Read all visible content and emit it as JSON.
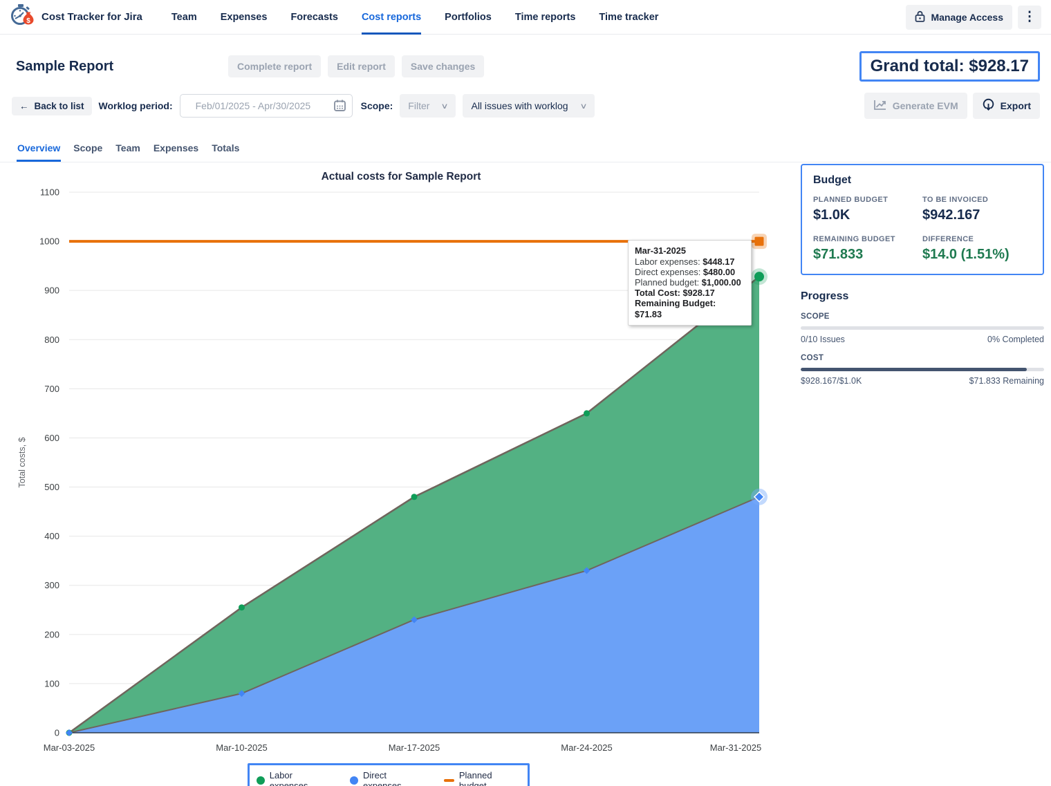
{
  "brand": {
    "name": "Cost Tracker for Jira"
  },
  "nav": {
    "items": [
      {
        "label": "Team"
      },
      {
        "label": "Expenses"
      },
      {
        "label": "Forecasts"
      },
      {
        "label": "Cost reports",
        "active": true
      },
      {
        "label": "Portfolios"
      },
      {
        "label": "Time reports"
      },
      {
        "label": "Time tracker"
      }
    ],
    "manage_access_label": "Manage Access"
  },
  "header": {
    "title": "Sample Report",
    "actions": {
      "complete": "Complete report",
      "edit": "Edit report",
      "save": "Save changes"
    },
    "grand_total": "Grand total: $928.17"
  },
  "toolbar": {
    "back_label": "Back to list",
    "worklog_label": "Worklog period:",
    "worklog_placeholder": "Feb/01/2025 - Apr/30/2025",
    "scope_label": "Scope:",
    "filter_placeholder": "Filter",
    "issues_filter_value": "All issues with worklog",
    "generate_evm_label": "Generate EVM",
    "export_label": "Export"
  },
  "tabs": {
    "items": [
      {
        "label": "Overview",
        "active": true
      },
      {
        "label": "Scope"
      },
      {
        "label": "Team"
      },
      {
        "label": "Expenses"
      },
      {
        "label": "Totals"
      }
    ]
  },
  "chart_data": {
    "type": "area",
    "stacked": true,
    "title": "Actual costs for Sample Report",
    "ylabel": "Total costs, $",
    "categories": [
      "Mar-03-2025",
      "Mar-10-2025",
      "Mar-17-2025",
      "Mar-24-2025",
      "Mar-31-2025"
    ],
    "series": [
      {
        "name": "Labor expenses",
        "marker": "circle",
        "color": "#0f9d58",
        "fill": "#53b183",
        "values": [
          0,
          175,
          250,
          320,
          448.17
        ]
      },
      {
        "name": "Direct expenses",
        "marker": "diamond",
        "color": "#4285f4",
        "fill": "#6ba1f7",
        "values": [
          0,
          80,
          230,
          330,
          480
        ]
      },
      {
        "name": "Planned budget",
        "type": "line",
        "marker": "square",
        "color": "#e8710a",
        "values": [
          1000,
          1000,
          1000,
          1000,
          1000
        ]
      }
    ],
    "ylim": [
      0,
      1100
    ],
    "ytick_step": 100,
    "grid": true,
    "legend_position": "bottom",
    "line_color": "#6f655c",
    "note": "areas stacked: Direct expenses bottom, Labor expenses on top; top boundary = total cost reaching 928.17 on Mar-31-2025"
  },
  "tooltip": {
    "title": "Mar-31-2025",
    "rows": [
      {
        "label": "Labor expenses: ",
        "value": "$448.17"
      },
      {
        "label": "Direct expenses: ",
        "value": "$480.00"
      },
      {
        "label": "Planned budget: ",
        "value": "$1,000.00"
      },
      {
        "label": "Total Cost: ",
        "value": "$928.17"
      },
      {
        "label": "Remaining Budget: ",
        "value": "$71.83"
      }
    ]
  },
  "budget": {
    "heading": "Budget",
    "planned": {
      "label": "PLANNED BUDGET",
      "value": "$1.0K"
    },
    "invoiced": {
      "label": "TO BE INVOICED",
      "value": "$942.167"
    },
    "remaining": {
      "label": "REMAINING BUDGET",
      "value": "$71.833"
    },
    "difference": {
      "label": "DIFFERENCE",
      "value": "$14.0 (1.51%)"
    }
  },
  "progress": {
    "heading": "Progress",
    "scope": {
      "label": "SCOPE",
      "left": "0/10 Issues",
      "right": "0% Completed",
      "percent": 0
    },
    "cost": {
      "label": "COST",
      "left": "$928.167/$1.0K",
      "right": "$71.833 Remaining",
      "percent": 92.8
    }
  },
  "colors": {
    "accent_blue": "#4285f4",
    "active_nav_blue": "#1868db",
    "navy_text": "#172b4d",
    "green_value": "#1f7a50",
    "labor_green": "#0f9d58",
    "direct_blue": "#4285f4",
    "budget_orange": "#e8710a",
    "progress_fill": "#44546f"
  }
}
